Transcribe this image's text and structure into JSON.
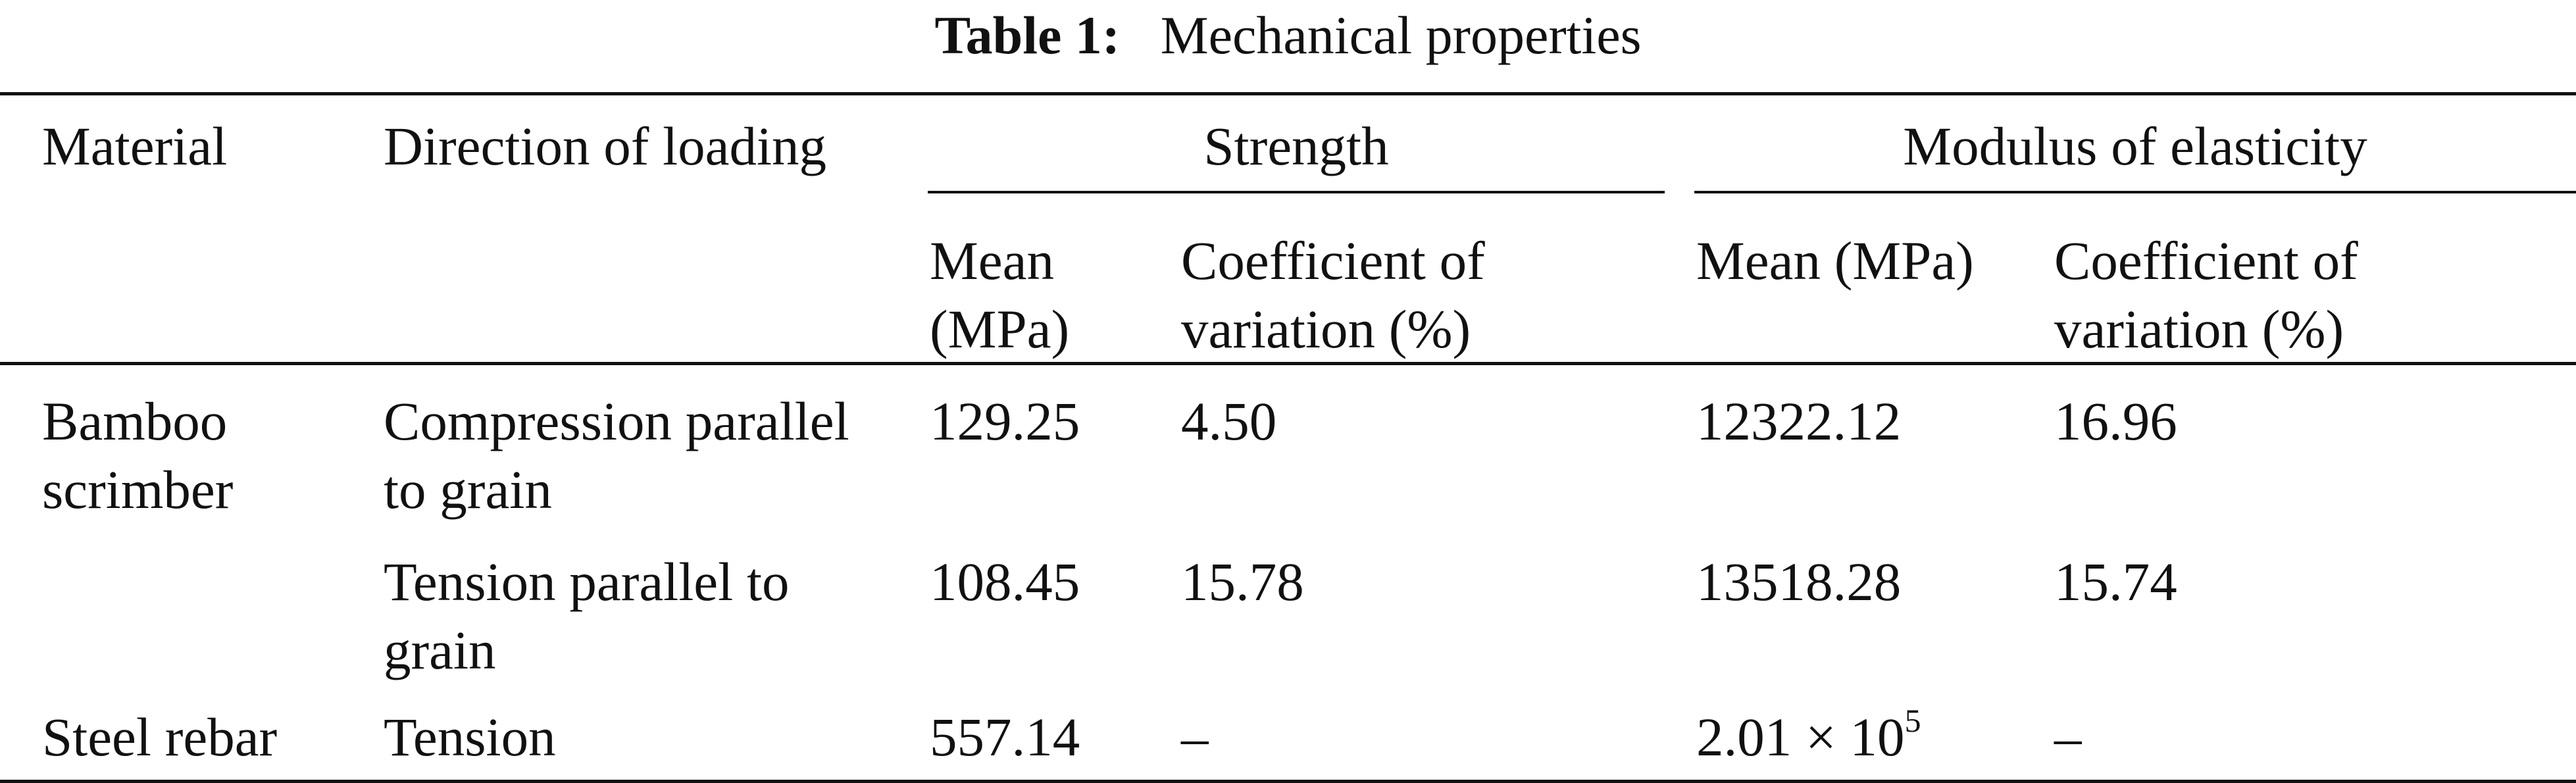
{
  "caption": {
    "label": "Table 1:",
    "title": "Mechanical properties"
  },
  "header": {
    "material": "Material",
    "direction": "Direction of loading",
    "strength": "Strength",
    "modulus": "Modulus of elasticity",
    "strength_mean_1": "Mean",
    "strength_mean_2": "(MPa)",
    "strength_cov_1": "Coefficient of",
    "strength_cov_2": "variation (%)",
    "modulus_mean": "Mean (MPa)",
    "modulus_cov_1": "Coefficient of",
    "modulus_cov_2": "variation (%)"
  },
  "rows": [
    {
      "material_1": "Bamboo",
      "material_2": "scrimber",
      "direction_1": "Compression parallel",
      "direction_2": "to grain",
      "strength_mean": "129.25",
      "strength_cov": "4.50",
      "modulus_mean": "12322.12",
      "modulus_cov": "16.96"
    },
    {
      "direction_1": "Tension parallel to",
      "direction_2": "grain",
      "strength_mean": "108.45",
      "strength_cov": "15.78",
      "modulus_mean": "13518.28",
      "modulus_cov": "15.74"
    },
    {
      "material_1": "Steel rebar",
      "direction_1": "Tension",
      "strength_mean": "557.14",
      "strength_cov": "–",
      "modulus_mean_base": "2.01 × 10",
      "modulus_mean_exp": "5",
      "modulus_cov": "–"
    }
  ]
}
